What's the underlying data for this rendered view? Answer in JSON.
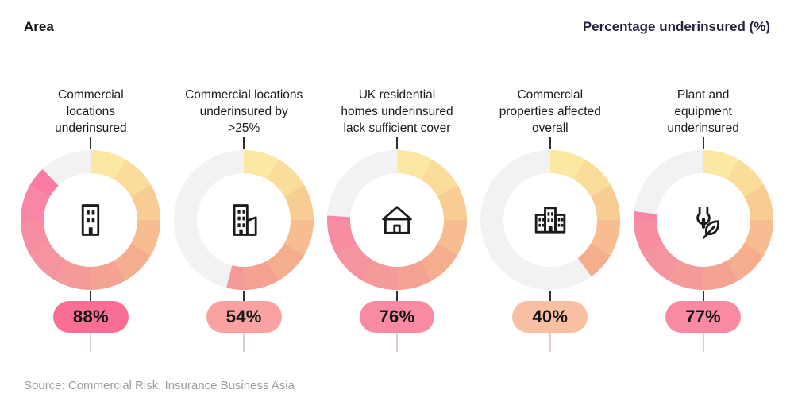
{
  "header": {
    "left": "Area",
    "right": "Percentage underinsured (%)"
  },
  "source": "Source: Commercial Risk, Insurance Business Asia",
  "colors": {
    "track": "#f2f2f3",
    "connector_dark": "#2f2f2f",
    "connector_light": "#e3ccd1",
    "segment_palette": [
      "#FBE8A3",
      "#FADC9B",
      "#F8CD94",
      "#F7BC8F",
      "#F5AE8D",
      "#F4A292",
      "#F49A98",
      "#F5939E",
      "#F68DA1",
      "#F787A4",
      "#F97CA4",
      "#FA6F9F"
    ]
  },
  "chart_data": {
    "type": "pie",
    "subtype": "donut-small-multiples",
    "unit": "%",
    "segments_per_ring": 12,
    "fill_direction": "clockwise-from-top",
    "items": [
      {
        "label": "Commercial locations underinsured",
        "label_lines": [
          "Commercial",
          "locations",
          "underinsured"
        ],
        "value": 88,
        "value_label": "88%",
        "pill_color": "#F96E93",
        "icon": "office-building-icon"
      },
      {
        "label": "Commercial locations underinsured by >25%",
        "label_lines": [
          "Commercial locations",
          "underinsured by",
          ">25%"
        ],
        "value": 54,
        "value_label": "54%",
        "pill_color": "#F8A2A2",
        "icon": "building-annex-icon"
      },
      {
        "label": "UK residential homes underinsured lack sufficient cover",
        "label_lines": [
          "UK residential",
          "homes underinsured",
          "lack sufficient cover"
        ],
        "value": 76,
        "value_label": "76%",
        "pill_color": "#F88BA3",
        "icon": "house-icon"
      },
      {
        "label": "Commercial properties affected overall",
        "label_lines": [
          "Commercial",
          "properties affected",
          "overall"
        ],
        "value": 40,
        "value_label": "40%",
        "pill_color": "#F8BFA3",
        "icon": "building-complex-icon"
      },
      {
        "label": "Plant and equipment underinsured",
        "label_lines": [
          "Plant and",
          "equipment",
          "underinsured"
        ],
        "value": 77,
        "value_label": "77%",
        "pill_color": "#F88BA3",
        "icon": "wrench-leaf-icon"
      }
    ]
  }
}
